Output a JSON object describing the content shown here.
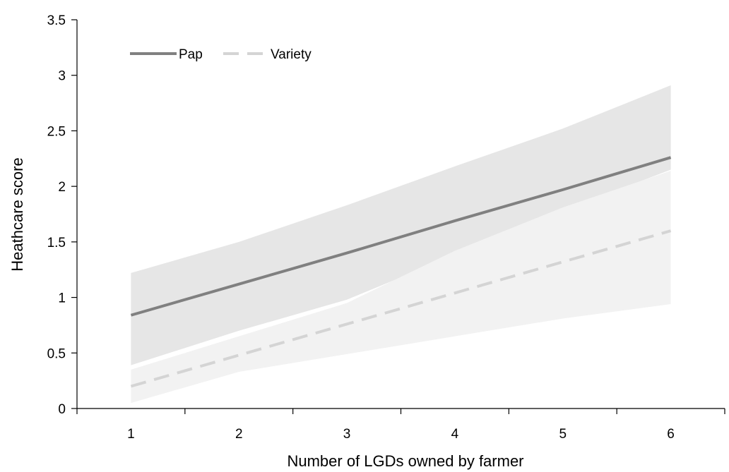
{
  "chart_data": {
    "type": "line",
    "title": "",
    "xlabel": "Number of LGDs owned by farmer",
    "ylabel": "Heathcare score",
    "x": [
      1,
      2,
      3,
      4,
      5,
      6
    ],
    "xlim": [
      0.5,
      6.5
    ],
    "ylim": [
      0,
      3.5
    ],
    "yticks": [
      "0",
      "0.5",
      "1",
      "1.5",
      "2",
      "2.5",
      "3",
      "3.5"
    ],
    "xticks": [
      "1",
      "2",
      "3",
      "4",
      "5",
      "6"
    ],
    "grid": false,
    "legend_position": "top-left",
    "series": [
      {
        "name": "Pap",
        "style": "solid",
        "color": "#808080",
        "band_color": "#e6e6e6",
        "values": [
          0.84,
          1.12,
          1.4,
          1.69,
          1.97,
          2.26
        ],
        "lower": [
          0.39,
          0.7,
          0.98,
          1.38,
          1.78,
          2.15
        ],
        "upper": [
          1.22,
          1.5,
          1.83,
          2.18,
          2.52,
          2.91
        ]
      },
      {
        "name": "Variety",
        "style": "dashed",
        "color": "#d4d4d4",
        "band_color": "#f2f2f2",
        "values": [
          0.2,
          0.48,
          0.76,
          1.04,
          1.32,
          1.6
        ],
        "lower": [
          0.05,
          0.33,
          0.49,
          0.65,
          0.81,
          0.94
        ],
        "upper": [
          0.35,
          0.65,
          0.95,
          1.42,
          1.81,
          2.14
        ]
      }
    ]
  }
}
